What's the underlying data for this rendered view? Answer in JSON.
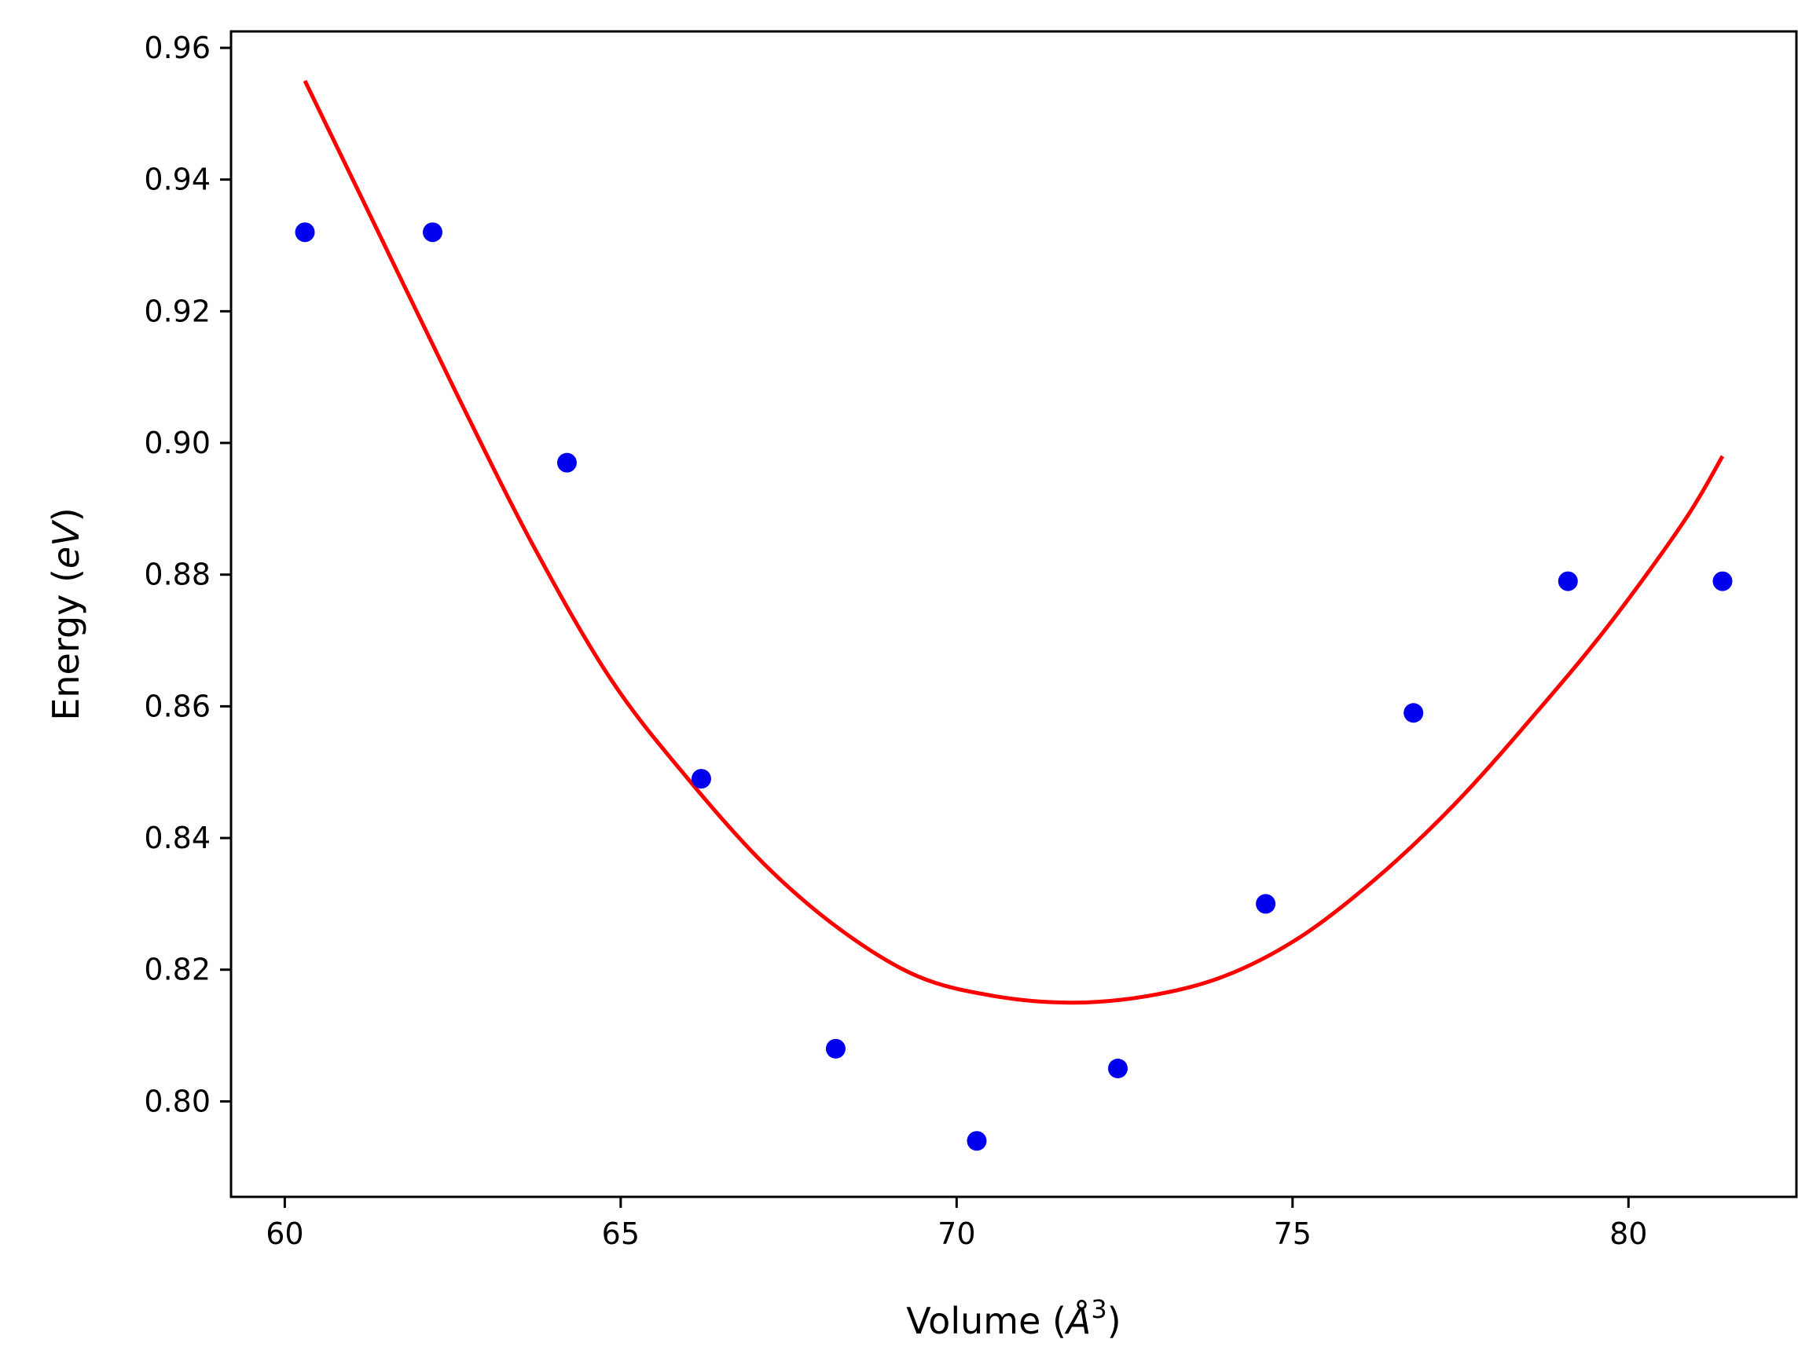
{
  "chart_data": {
    "type": "scatter",
    "title": "",
    "xlabel": "Volume (Å³)",
    "ylabel": "Energy (eV)",
    "xlabel_parts": {
      "prefix": "Volume (",
      "symbol": "Å",
      "power": "3",
      "suffix": ")"
    },
    "ylabel_parts": {
      "prefix": "Energy (",
      "unit": "eV",
      "suffix": ")"
    },
    "xlim": [
      59.2,
      82.5
    ],
    "ylim": [
      0.7855,
      0.9625
    ],
    "xticks": [
      60,
      65,
      70,
      75,
      80
    ],
    "yticks": [
      0.8,
      0.82,
      0.84,
      0.86,
      0.88,
      0.9,
      0.92,
      0.94,
      0.96
    ],
    "xtick_labels": [
      "60",
      "65",
      "70",
      "75",
      "80"
    ],
    "ytick_labels": [
      "0.80",
      "0.82",
      "0.84",
      "0.86",
      "0.88",
      "0.90",
      "0.92",
      "0.94",
      "0.96"
    ],
    "grid": false,
    "series": [
      {
        "kind": "points",
        "color": "#0000ee",
        "x": [
          60.3,
          62.2,
          64.2,
          66.2,
          68.2,
          70.3,
          72.4,
          74.6,
          76.8,
          79.1,
          81.4
        ],
        "y": [
          0.932,
          0.932,
          0.897,
          0.849,
          0.808,
          0.794,
          0.805,
          0.83,
          0.859,
          0.879,
          0.879
        ]
      },
      {
        "kind": "fit-curve",
        "color": "#ff0000",
        "x": [
          60.3,
          61.44,
          62.58,
          63.72,
          64.86,
          66.0,
          67.14,
          68.28,
          69.42,
          70.56,
          71.7,
          72.84,
          73.98,
          75.12,
          76.26,
          77.4,
          78.54,
          79.68,
          80.82,
          81.4
        ],
        "y": [
          0.955,
          0.931,
          0.907,
          0.884,
          0.864,
          0.849,
          0.836,
          0.826,
          0.819,
          0.816,
          0.815,
          0.816,
          0.819,
          0.825,
          0.834,
          0.845,
          0.858,
          0.872,
          0.888,
          0.898
        ]
      }
    ]
  }
}
